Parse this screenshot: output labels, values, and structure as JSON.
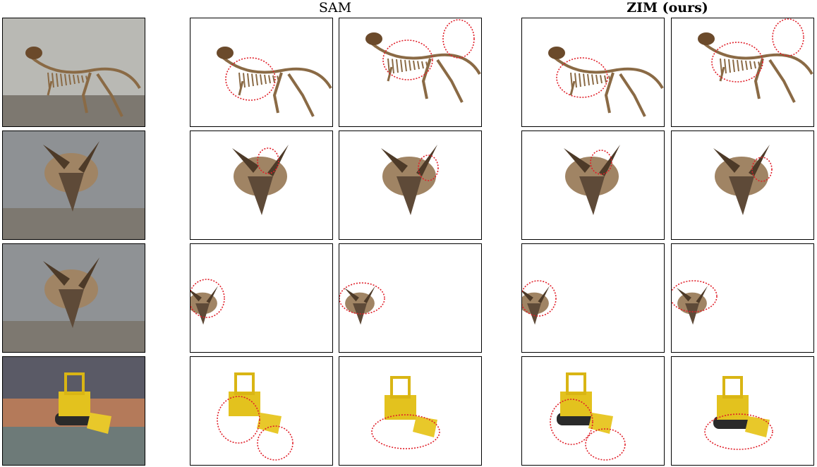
{
  "header": {
    "sam": "SAM",
    "zim": "ZIM (ours)"
  }
}
